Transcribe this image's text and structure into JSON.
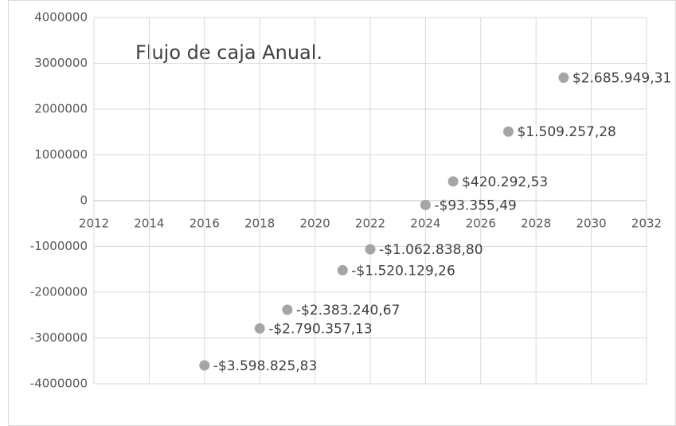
{
  "chart_data": {
    "type": "scatter",
    "title": "Flujo de caja Anual.",
    "x": [
      2016,
      2018,
      2019,
      2021,
      2022,
      2024,
      2025,
      2027,
      2029
    ],
    "values": [
      -3598825.83,
      -2790357.13,
      -2383240.67,
      -1520129.26,
      -1062838.8,
      -93355.49,
      420292.53,
      1509257.28,
      2685949.31
    ],
    "value_labels": [
      "-$3.598.825,83",
      "-$2.790.357,13",
      "-$2.383.240,67",
      "-$1.520.129,26",
      "-$1.062.838,80",
      "-$93.355,49",
      "$420.292,53",
      "$1.509.257,28",
      "$2.685.949,31"
    ],
    "color": "#a5a5a5",
    "xlim": [
      2012,
      2032
    ],
    "xticks": [
      2012,
      2014,
      2016,
      2018,
      2020,
      2022,
      2024,
      2026,
      2028,
      2030,
      2032
    ],
    "ylim": [
      -4000000,
      4000000
    ],
    "yticks": [
      -4000000,
      -3000000,
      -2000000,
      -1000000,
      0,
      1000000,
      2000000,
      3000000,
      4000000
    ],
    "grid": true
  }
}
